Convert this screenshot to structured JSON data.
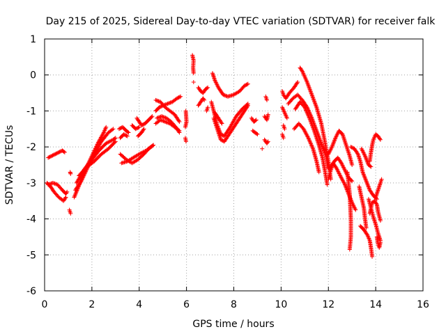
{
  "chart_data": {
    "type": "scatter",
    "title": "Day 215 of 2025, Sidereal Day-to-day VTEC variation (SDTVAR) for receiver falk",
    "xlabel": "GPS time / hours",
    "ylabel": "SDTVAR / TECUs",
    "xlim": [
      0,
      16
    ],
    "ylim": [
      -6,
      1
    ],
    "xticks": [
      "0",
      "2",
      "4",
      "6",
      "8",
      "10",
      "12",
      "14",
      "16"
    ],
    "yticks": [
      "1",
      "0",
      "-1",
      "-2",
      "-3",
      "-4",
      "-5",
      "-6"
    ],
    "grid": true,
    "marker": "+",
    "color": "#ff0000",
    "tracks": [
      [
        [
          0.15,
          -2.3
        ],
        [
          0.3,
          -2.25
        ],
        [
          0.45,
          -2.2
        ],
        [
          0.6,
          -2.15
        ],
        [
          0.75,
          -2.1
        ],
        [
          0.85,
          -2.15
        ]
      ],
      [
        [
          0.1,
          -3.0
        ],
        [
          0.25,
          -3.1
        ],
        [
          0.4,
          -3.25
        ],
        [
          0.6,
          -3.4
        ],
        [
          0.8,
          -3.5
        ],
        [
          0.9,
          -3.4
        ]
      ],
      [
        [
          0.15,
          -3.05
        ],
        [
          0.35,
          -3.0
        ],
        [
          0.55,
          -3.05
        ],
        [
          0.75,
          -3.2
        ],
        [
          0.9,
          -3.3
        ],
        [
          0.95,
          -3.25
        ]
      ],
      [
        [
          1.08,
          -2.7
        ],
        [
          1.1,
          -2.75
        ]
      ],
      [
        [
          1.05,
          -3.75
        ],
        [
          1.1,
          -3.85
        ]
      ],
      [
        [
          1.25,
          -3.4
        ],
        [
          1.5,
          -3.0
        ],
        [
          1.75,
          -2.6
        ],
        [
          2.0,
          -2.25
        ],
        [
          2.25,
          -1.9
        ],
        [
          2.5,
          -1.6
        ],
        [
          2.6,
          -1.45
        ]
      ],
      [
        [
          1.3,
          -3.2
        ],
        [
          1.55,
          -2.95
        ],
        [
          1.8,
          -2.6
        ],
        [
          2.1,
          -2.2
        ],
        [
          2.4,
          -1.85
        ],
        [
          2.7,
          -1.6
        ],
        [
          2.9,
          -1.5
        ]
      ],
      [
        [
          1.35,
          -3.0
        ],
        [
          1.7,
          -2.6
        ],
        [
          2.0,
          -2.35
        ],
        [
          2.3,
          -2.1
        ],
        [
          2.6,
          -1.9
        ],
        [
          2.9,
          -1.8
        ],
        [
          3.0,
          -1.75
        ]
      ],
      [
        [
          1.45,
          -2.8
        ],
        [
          1.8,
          -2.55
        ],
        [
          2.1,
          -2.4
        ],
        [
          2.4,
          -2.2
        ],
        [
          2.7,
          -2.05
        ],
        [
          3.0,
          -1.85
        ]
      ],
      [
        [
          3.15,
          -1.5
        ],
        [
          3.3,
          -1.45
        ],
        [
          3.45,
          -1.55
        ],
        [
          3.55,
          -1.6
        ]
      ],
      [
        [
          3.2,
          -1.75
        ],
        [
          3.35,
          -1.65
        ],
        [
          3.5,
          -1.7
        ]
      ],
      [
        [
          3.25,
          -2.45
        ],
        [
          3.5,
          -2.4
        ],
        [
          3.75,
          -2.3
        ],
        [
          4.0,
          -2.2
        ],
        [
          4.3,
          -2.1
        ],
        [
          4.5,
          -2.0
        ],
        [
          4.6,
          -1.95
        ]
      ],
      [
        [
          3.2,
          -2.2
        ],
        [
          3.45,
          -2.35
        ],
        [
          3.7,
          -2.45
        ],
        [
          3.95,
          -2.35
        ],
        [
          4.2,
          -2.2
        ],
        [
          4.4,
          -2.05
        ],
        [
          4.6,
          -1.95
        ]
      ],
      [
        [
          3.7,
          -1.4
        ],
        [
          3.85,
          -1.5
        ],
        [
          4.0,
          -1.45
        ]
      ],
      [
        [
          3.95,
          -1.7
        ],
        [
          4.1,
          -1.6
        ],
        [
          4.2,
          -1.5
        ]
      ],
      [
        [
          3.9,
          -1.2
        ],
        [
          4.0,
          -1.3
        ],
        [
          4.1,
          -1.4
        ],
        [
          4.25,
          -1.35
        ],
        [
          4.4,
          -1.25
        ],
        [
          4.55,
          -1.15
        ]
      ],
      [
        [
          4.7,
          -0.7
        ],
        [
          4.9,
          -0.75
        ],
        [
          5.1,
          -0.9
        ],
        [
          5.3,
          -1.0
        ],
        [
          5.5,
          -1.1
        ],
        [
          5.7,
          -1.3
        ]
      ],
      [
        [
          4.7,
          -1.0
        ],
        [
          4.85,
          -0.9
        ],
        [
          5.0,
          -0.85
        ],
        [
          5.2,
          -0.8
        ],
        [
          5.4,
          -0.75
        ],
        [
          5.6,
          -0.65
        ],
        [
          5.75,
          -0.6
        ]
      ],
      [
        [
          4.7,
          -1.35
        ],
        [
          4.9,
          -1.25
        ],
        [
          5.1,
          -1.3
        ],
        [
          5.3,
          -1.35
        ],
        [
          5.5,
          -1.45
        ],
        [
          5.7,
          -1.55
        ]
      ],
      [
        [
          4.75,
          -1.2
        ],
        [
          4.95,
          -1.15
        ],
        [
          5.15,
          -1.2
        ],
        [
          5.35,
          -1.3
        ],
        [
          5.55,
          -1.45
        ],
        [
          5.7,
          -1.6
        ]
      ],
      [
        [
          5.95,
          -1.75
        ],
        [
          5.98,
          -1.85
        ]
      ],
      [
        [
          5.95,
          -1.45
        ],
        [
          6.0,
          -1.3
        ],
        [
          5.97,
          -1.0
        ]
      ],
      [
        [
          6.25,
          0.55
        ],
        [
          6.3,
          0.4
        ],
        [
          6.28,
          0.2
        ],
        [
          6.3,
          0.05
        ]
      ],
      [
        [
          6.3,
          -0.2
        ]
      ],
      [
        [
          6.5,
          -0.35
        ],
        [
          6.6,
          -0.45
        ],
        [
          6.7,
          -0.5
        ],
        [
          6.8,
          -0.4
        ],
        [
          6.9,
          -0.35
        ]
      ],
      [
        [
          6.5,
          -0.85
        ],
        [
          6.6,
          -0.75
        ],
        [
          6.7,
          -0.65
        ],
        [
          6.75,
          -0.7
        ]
      ],
      [
        [
          6.85,
          -1.0
        ],
        [
          6.9,
          -0.9
        ]
      ],
      [
        [
          7.1,
          0.05
        ],
        [
          7.2,
          -0.15
        ],
        [
          7.35,
          -0.35
        ],
        [
          7.55,
          -0.55
        ],
        [
          7.75,
          -0.6
        ],
        [
          8.0,
          -0.55
        ],
        [
          8.25,
          -0.45
        ],
        [
          8.45,
          -0.3
        ],
        [
          8.6,
          -0.25
        ]
      ],
      [
        [
          7.05,
          -0.75
        ],
        [
          7.15,
          -1.0
        ],
        [
          7.3,
          -1.4
        ],
        [
          7.45,
          -1.65
        ],
        [
          7.6,
          -1.7
        ],
        [
          7.85,
          -1.45
        ],
        [
          8.1,
          -1.15
        ],
        [
          8.35,
          -0.95
        ],
        [
          8.6,
          -0.8
        ]
      ],
      [
        [
          7.15,
          -1.2
        ],
        [
          7.3,
          -1.5
        ],
        [
          7.45,
          -1.8
        ],
        [
          7.6,
          -1.85
        ],
        [
          7.8,
          -1.65
        ],
        [
          8.0,
          -1.45
        ],
        [
          8.25,
          -1.2
        ],
        [
          8.5,
          -0.95
        ],
        [
          8.6,
          -0.85
        ]
      ],
      [
        [
          7.2,
          -1.05
        ],
        [
          7.35,
          -1.2
        ],
        [
          7.5,
          -1.35
        ]
      ],
      [
        [
          8.75,
          -1.2
        ],
        [
          8.85,
          -1.3
        ],
        [
          8.95,
          -1.25
        ]
      ],
      [
        [
          8.8,
          -1.55
        ],
        [
          8.9,
          -1.6
        ],
        [
          9.0,
          -1.65
        ]
      ],
      [
        [
          9.2,
          -2.05
        ]
      ],
      [
        [
          9.3,
          -1.15
        ],
        [
          9.4,
          -1.25
        ],
        [
          9.45,
          -1.1
        ]
      ],
      [
        [
          9.35,
          -0.6
        ],
        [
          9.4,
          -0.7
        ]
      ],
      [
        [
          9.3,
          -1.8
        ],
        [
          9.4,
          -1.9
        ],
        [
          9.45,
          -1.85
        ]
      ],
      [
        [
          10.05,
          -0.45
        ],
        [
          10.1,
          -0.55
        ],
        [
          10.2,
          -0.65
        ],
        [
          10.35,
          -0.5
        ],
        [
          10.55,
          -0.35
        ],
        [
          10.7,
          -0.2
        ]
      ],
      [
        [
          10.05,
          -0.9
        ],
        [
          10.15,
          -1.05
        ],
        [
          10.25,
          -1.2
        ]
      ],
      [
        [
          10.1,
          -1.4
        ],
        [
          10.15,
          -1.5
        ]
      ],
      [
        [
          10.05,
          -1.65
        ],
        [
          10.1,
          -1.75
        ]
      ],
      [
        [
          10.3,
          -0.8
        ],
        [
          10.5,
          -0.65
        ],
        [
          10.7,
          -0.55
        ],
        [
          10.9,
          -0.7
        ],
        [
          11.1,
          -0.9
        ],
        [
          11.3,
          -1.2
        ],
        [
          11.5,
          -1.55
        ],
        [
          11.7,
          -1.9
        ],
        [
          11.9,
          -2.25
        ],
        [
          12.0,
          -2.6
        ]
      ],
      [
        [
          10.8,
          0.2
        ],
        [
          10.9,
          0.1
        ],
        [
          11.0,
          -0.05
        ],
        [
          11.1,
          -0.2
        ],
        [
          11.3,
          -0.55
        ],
        [
          11.5,
          -0.9
        ],
        [
          11.7,
          -1.35
        ],
        [
          11.85,
          -1.85
        ],
        [
          12.0,
          -2.4
        ],
        [
          12.1,
          -2.9
        ]
      ],
      [
        [
          10.6,
          -0.95
        ],
        [
          10.8,
          -0.75
        ],
        [
          11.0,
          -0.9
        ],
        [
          11.2,
          -1.2
        ],
        [
          11.4,
          -1.55
        ],
        [
          11.6,
          -1.95
        ],
        [
          11.75,
          -2.3
        ],
        [
          11.85,
          -2.65
        ],
        [
          11.95,
          -3.05
        ]
      ],
      [
        [
          10.55,
          -1.5
        ],
        [
          10.75,
          -1.35
        ],
        [
          10.95,
          -1.5
        ],
        [
          11.15,
          -1.75
        ],
        [
          11.35,
          -2.05
        ],
        [
          11.5,
          -2.4
        ],
        [
          11.6,
          -2.7
        ]
      ],
      [
        [
          12.0,
          -2.9
        ],
        [
          12.1,
          -2.65
        ],
        [
          12.2,
          -2.45
        ],
        [
          12.35,
          -2.6
        ],
        [
          12.5,
          -2.8
        ],
        [
          12.7,
          -3.05
        ],
        [
          12.85,
          -3.3
        ],
        [
          13.0,
          -3.55
        ],
        [
          13.15,
          -3.75
        ]
      ],
      [
        [
          12.0,
          -2.2
        ],
        [
          12.15,
          -2.0
        ],
        [
          12.3,
          -1.75
        ],
        [
          12.45,
          -1.55
        ],
        [
          12.6,
          -1.65
        ],
        [
          12.75,
          -1.95
        ],
        [
          12.9,
          -2.25
        ],
        [
          13.0,
          -2.5
        ]
      ],
      [
        [
          12.1,
          -2.55
        ],
        [
          12.25,
          -2.4
        ],
        [
          12.4,
          -2.3
        ],
        [
          12.55,
          -2.45
        ],
        [
          12.7,
          -2.65
        ],
        [
          12.85,
          -2.85
        ],
        [
          13.0,
          -2.95
        ]
      ],
      [
        [
          12.8,
          -2.7
        ],
        [
          12.9,
          -3.3
        ],
        [
          12.95,
          -4.0
        ],
        [
          12.95,
          -4.5
        ],
        [
          12.9,
          -4.85
        ]
      ],
      [
        [
          12.95,
          -2.0
        ],
        [
          13.1,
          -2.05
        ],
        [
          13.25,
          -2.2
        ],
        [
          13.35,
          -2.4
        ],
        [
          13.45,
          -2.7
        ],
        [
          13.6,
          -2.95
        ],
        [
          13.75,
          -3.2
        ],
        [
          13.9,
          -3.35
        ],
        [
          14.05,
          -3.45
        ]
      ],
      [
        [
          13.3,
          -3.1
        ],
        [
          13.4,
          -3.4
        ],
        [
          13.5,
          -3.7
        ],
        [
          13.55,
          -4.0
        ],
        [
          13.6,
          -4.25
        ]
      ],
      [
        [
          13.4,
          -2.05
        ],
        [
          13.55,
          -2.25
        ],
        [
          13.7,
          -2.5
        ],
        [
          13.8,
          -2.55
        ]
      ],
      [
        [
          13.35,
          -4.2
        ],
        [
          13.5,
          -4.3
        ],
        [
          13.65,
          -4.45
        ],
        [
          13.75,
          -4.6
        ],
        [
          13.8,
          -4.8
        ],
        [
          13.85,
          -5.05
        ]
      ],
      [
        [
          13.7,
          -3.45
        ],
        [
          13.8,
          -3.7
        ],
        [
          13.9,
          -3.95
        ],
        [
          14.0,
          -4.15
        ],
        [
          14.1,
          -4.4
        ],
        [
          14.2,
          -4.6
        ]
      ],
      [
        [
          13.75,
          -3.85
        ],
        [
          13.85,
          -3.55
        ],
        [
          13.95,
          -3.5
        ],
        [
          14.05,
          -3.6
        ],
        [
          14.1,
          -3.8
        ],
        [
          14.2,
          -4.05
        ]
      ],
      [
        [
          14.05,
          -4.5
        ],
        [
          14.1,
          -4.7
        ],
        [
          14.15,
          -4.8
        ],
        [
          14.2,
          -4.65
        ]
      ],
      [
        [
          14.0,
          -3.4
        ],
        [
          14.1,
          -3.2
        ],
        [
          14.2,
          -3.0
        ],
        [
          14.25,
          -2.9
        ]
      ],
      [
        [
          13.75,
          -2.4
        ],
        [
          13.8,
          -2.15
        ],
        [
          13.85,
          -1.95
        ],
        [
          13.9,
          -1.8
        ],
        [
          14.0,
          -1.65
        ],
        [
          14.1,
          -1.7
        ],
        [
          14.2,
          -1.8
        ]
      ]
    ]
  }
}
